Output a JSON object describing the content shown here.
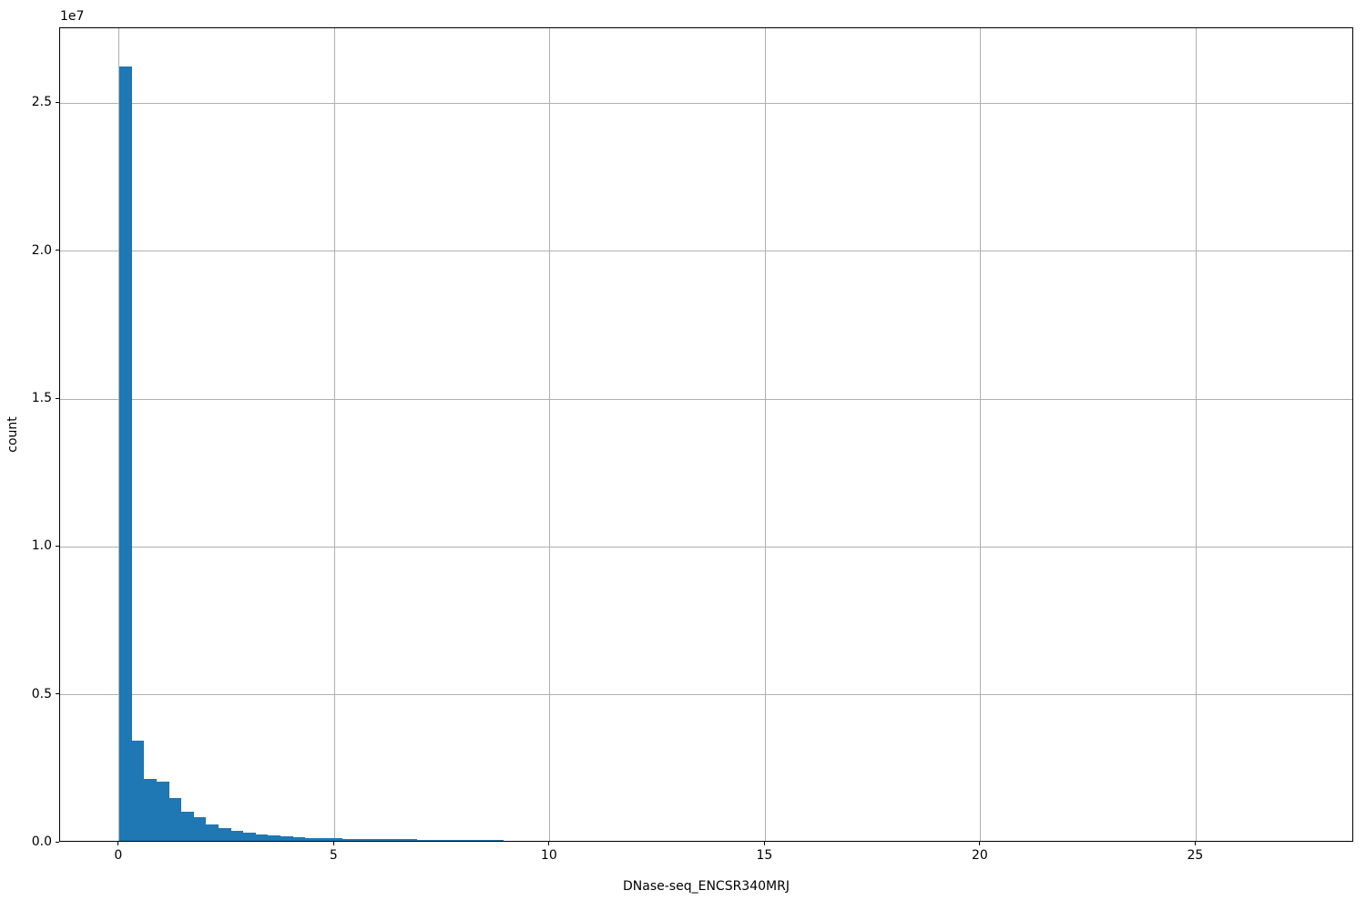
{
  "chart_data": {
    "type": "bar",
    "subtype": "histogram",
    "title": "",
    "xlabel": "DNase-seq_ENCSR340MRJ",
    "ylabel": "count",
    "offset_text": "1e7",
    "x_ticks": [
      0,
      5,
      10,
      15,
      20,
      25
    ],
    "y_ticks_1e7": [
      0.0,
      0.5,
      1.0,
      1.5,
      2.0,
      2.5
    ],
    "xlim": [
      -1.37,
      28.67
    ],
    "ylim": [
      0,
      27540000
    ],
    "grid": true,
    "legend_position": "none",
    "bar_color": "#1f77b4",
    "grid_color": "#b0b0b0",
    "bin_start": 0,
    "bin_width": 0.2875,
    "bin_values": [
      26200000,
      3380000,
      2100000,
      2000000,
      1460000,
      980000,
      790000,
      550000,
      430000,
      350000,
      290000,
      230000,
      180000,
      150000,
      120000,
      100000,
      88000,
      78000,
      70000,
      64000,
      60000,
      56000,
      52000,
      48000,
      40000,
      36000,
      33000,
      31000,
      29000,
      27000,
      25000
    ]
  }
}
